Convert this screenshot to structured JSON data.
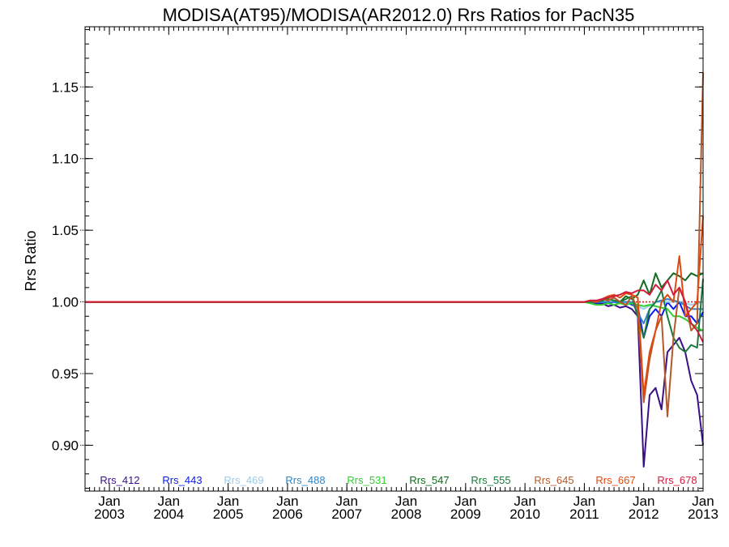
{
  "chart_data": {
    "type": "line",
    "title": "MODISA(AT95)/MODISA(AR2012.0)  Rrs Ratios for PacN35",
    "ylabel": "Rrs Ratio",
    "xlabel": "",
    "xlim": [
      2002.59,
      2013.0
    ],
    "ylim": [
      0.868,
      1.192
    ],
    "y_ticks": [
      0.9,
      0.95,
      1.0,
      1.05,
      1.1,
      1.15
    ],
    "y_tick_labels": [
      "0.90",
      "0.95",
      "1.00",
      "1.05",
      "1.10",
      "1.15"
    ],
    "x_ticks": [
      {
        "year": 2003,
        "labels": [
          "Jan",
          "2003"
        ]
      },
      {
        "year": 2004,
        "labels": [
          "Jan",
          "2004"
        ]
      },
      {
        "year": 2005,
        "labels": [
          "Jan",
          "2005"
        ]
      },
      {
        "year": 2006,
        "labels": [
          "Jan",
          "2006"
        ]
      },
      {
        "year": 2007,
        "labels": [
          "Jan",
          "2007"
        ]
      },
      {
        "year": 2008,
        "labels": [
          "Jan",
          "2008"
        ]
      },
      {
        "year": 2009,
        "labels": [
          "Jan",
          "2009"
        ]
      },
      {
        "year": 2010,
        "labels": [
          "Jan",
          "2010"
        ]
      },
      {
        "year": 2011,
        "labels": [
          "Jan",
          "2011"
        ]
      },
      {
        "year": 2012,
        "labels": [
          "Jan",
          "2012"
        ]
      },
      {
        "year": 2013,
        "labels": [
          "Jan",
          "2013"
        ]
      }
    ],
    "reference_line": {
      "y": 1.0,
      "color": "#e8171d",
      "style": "dotted"
    },
    "grid": false,
    "legend_position": "bottom",
    "series": [
      {
        "name": "Rrs_412",
        "color": "#3b0f86",
        "x": [
          2002.59,
          2010.9,
          2011.0,
          2011.1,
          2011.2,
          2011.3,
          2011.4,
          2011.5,
          2011.6,
          2011.7,
          2011.8,
          2011.9,
          2012.0,
          2012.1,
          2012.2,
          2012.3,
          2012.4,
          2012.5,
          2012.6,
          2012.7,
          2012.8,
          2012.9,
          2013.0
        ],
        "y": [
          1.0,
          1.0,
          1.0,
          1.0,
          0.998,
          0.999,
          0.997,
          0.998,
          0.996,
          0.997,
          0.995,
          0.99,
          0.885,
          0.935,
          0.94,
          0.925,
          0.965,
          0.97,
          0.975,
          0.965,
          0.945,
          0.935,
          0.9
        ]
      },
      {
        "name": "Rrs_443",
        "color": "#0a1aef",
        "x": [
          2002.59,
          2010.9,
          2011.0,
          2011.1,
          2011.2,
          2011.3,
          2011.4,
          2011.5,
          2011.6,
          2011.7,
          2011.8,
          2011.9,
          2012.0,
          2012.1,
          2012.2,
          2012.3,
          2012.4,
          2012.5,
          2012.6,
          2012.7,
          2012.8,
          2012.9,
          2013.0
        ],
        "y": [
          1.0,
          1.0,
          1.0,
          1.0,
          0.999,
          1.0,
          0.999,
          1.0,
          0.999,
          1.0,
          0.998,
          0.997,
          0.975,
          0.99,
          0.995,
          0.99,
          1.0,
          0.995,
          1.0,
          0.99,
          0.99,
          0.985,
          0.993
        ]
      },
      {
        "name": "Rrs_469",
        "color": "#9ecbe8",
        "x": [
          2002.59,
          2010.9,
          2011.0,
          2011.2,
          2011.4,
          2011.6,
          2011.8,
          2012.0,
          2012.2,
          2012.4,
          2012.6,
          2012.8,
          2013.0
        ],
        "y": [
          1.0,
          1.0,
          1.0,
          1.0,
          1.0,
          1.0,
          0.999,
          0.995,
          1.0,
          1.0,
          1.0,
          0.998,
          1.0
        ]
      },
      {
        "name": "Rrs_488",
        "color": "#2e86c8",
        "x": [
          2002.59,
          2010.9,
          2011.0,
          2011.2,
          2011.4,
          2011.6,
          2011.8,
          2012.0,
          2012.1,
          2012.2,
          2012.4,
          2012.6,
          2012.8,
          2013.0
        ],
        "y": [
          1.0,
          1.0,
          1.0,
          1.0,
          1.0,
          1.0,
          1.0,
          0.985,
          0.995,
          1.0,
          1.002,
          1.0,
          0.995,
          0.995
        ]
      },
      {
        "name": "Rrs_531",
        "color": "#2fd02f",
        "x": [
          2002.59,
          2010.9,
          2011.0,
          2011.1,
          2011.2,
          2011.3,
          2011.4,
          2011.5,
          2011.6,
          2011.7,
          2011.8,
          2011.9,
          2012.0,
          2012.1,
          2012.2,
          2012.3,
          2012.4,
          2012.5,
          2012.6,
          2012.7,
          2012.8,
          2012.9,
          2013.0
        ],
        "y": [
          1.0,
          1.0,
          1.0,
          0.999,
          0.998,
          0.998,
          0.999,
          0.998,
          0.999,
          0.998,
          0.999,
          0.998,
          0.997,
          0.998,
          0.997,
          0.996,
          0.995,
          0.99,
          0.99,
          0.988,
          0.985,
          0.982,
          0.98
        ]
      },
      {
        "name": "Rrs_547",
        "color": "#0f6b1e",
        "x": [
          2002.59,
          2010.9,
          2011.0,
          2011.1,
          2011.2,
          2011.3,
          2011.4,
          2011.5,
          2011.6,
          2011.7,
          2011.8,
          2011.9,
          2012.0,
          2012.1,
          2012.2,
          2012.3,
          2012.4,
          2012.5,
          2012.6,
          2012.7,
          2012.8,
          2012.9,
          2013.0
        ],
        "y": [
          1.0,
          1.0,
          1.0,
          1.001,
          1.0,
          1.002,
          1.001,
          1.003,
          1.0,
          1.004,
          1.002,
          1.005,
          1.015,
          1.005,
          1.02,
          1.01,
          1.015,
          1.02,
          1.018,
          1.015,
          1.02,
          1.018,
          1.02
        ]
      },
      {
        "name": "Rrs_555",
        "color": "#1a7a3a",
        "x": [
          2002.59,
          2010.9,
          2011.0,
          2011.2,
          2011.4,
          2011.6,
          2011.8,
          2012.0,
          2012.1,
          2012.2,
          2012.3,
          2012.4,
          2012.5,
          2012.6,
          2012.7,
          2012.8,
          2012.9,
          2013.0
        ],
        "y": [
          1.0,
          1.0,
          1.0,
          1.0,
          1.002,
          1.0,
          1.004,
          0.975,
          0.995,
          1.0,
          1.008,
          0.99,
          0.975,
          0.968,
          0.965,
          0.97,
          0.968,
          1.016
        ]
      },
      {
        "name": "Rrs_645",
        "color": "#b5582a",
        "x": [
          2002.59,
          2010.9,
          2011.0,
          2011.1,
          2011.2,
          2011.3,
          2011.4,
          2011.5,
          2011.6,
          2011.7,
          2011.8,
          2011.9,
          2012.0,
          2012.1,
          2012.2,
          2012.3,
          2012.4,
          2012.5,
          2012.6,
          2012.7,
          2012.8,
          2012.9,
          2013.0
        ],
        "y": [
          1.0,
          1.0,
          1.0,
          1.001,
          1.0,
          1.002,
          1.001,
          1.003,
          1.0,
          0.998,
          1.004,
          0.995,
          0.93,
          0.96,
          0.98,
          0.99,
          0.92,
          0.975,
          1.01,
          1.0,
          0.98,
          0.985,
          1.16
        ]
      },
      {
        "name": "Rrs_667",
        "color": "#e04a10",
        "x": [
          2002.59,
          2010.9,
          2011.0,
          2011.1,
          2011.2,
          2011.3,
          2011.4,
          2011.5,
          2011.6,
          2011.7,
          2011.8,
          2011.9,
          2012.0,
          2012.1,
          2012.2,
          2012.3,
          2012.4,
          2012.5,
          2012.6,
          2012.7,
          2012.8,
          2012.9,
          2013.0
        ],
        "y": [
          1.0,
          1.0,
          1.0,
          1.001,
          1.0,
          1.002,
          1.004,
          1.005,
          1.003,
          1.006,
          1.005,
          1.003,
          0.935,
          0.965,
          0.98,
          1.0,
          1.005,
          1.0,
          1.032,
          0.99,
          0.995,
          1.0,
          1.06
        ]
      },
      {
        "name": "Rrs_678",
        "color": "#d21a3a",
        "x": [
          2002.59,
          2010.9,
          2011.0,
          2011.1,
          2011.2,
          2011.3,
          2011.4,
          2011.5,
          2011.6,
          2011.7,
          2011.8,
          2011.9,
          2012.0,
          2012.1,
          2012.2,
          2012.3,
          2012.4,
          2012.5,
          2012.6,
          2012.7,
          2012.8,
          2012.9,
          2013.0
        ],
        "y": [
          1.0,
          1.0,
          1.0,
          1.001,
          1.001,
          1.002,
          1.003,
          1.004,
          1.005,
          1.007,
          1.006,
          1.008,
          1.008,
          1.005,
          1.012,
          1.008,
          1.015,
          1.005,
          1.01,
          1.0,
          0.985,
          0.98,
          0.972
        ]
      }
    ]
  }
}
